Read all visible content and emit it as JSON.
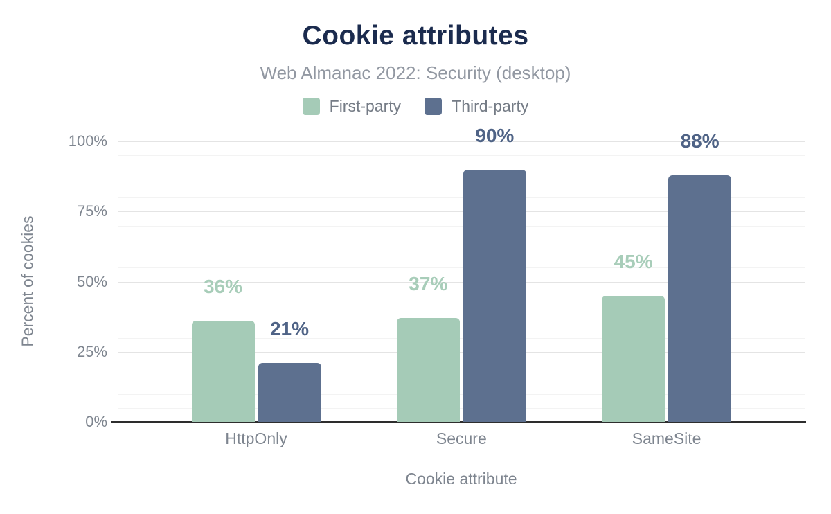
{
  "title": "Cookie attributes",
  "subtitle": "Web Almanac 2022: Security (desktop)",
  "chart_data": {
    "type": "bar",
    "title": "Cookie attributes",
    "subtitle": "Web Almanac 2022: Security (desktop)",
    "categories": [
      "HttpOnly",
      "Secure",
      "SameSite"
    ],
    "series": [
      {
        "name": "First-party",
        "values": [
          36,
          37,
          45
        ],
        "color": "#a5cbb7",
        "label_color": "#a8cdb9"
      },
      {
        "name": "Third-party",
        "values": [
          21,
          90,
          88
        ],
        "color": "#5d708f",
        "label_color": "#4f6386"
      }
    ],
    "value_suffix": "%",
    "data_labels": true,
    "xlabel": "Cookie attribute",
    "ylabel": "Percent of cookies",
    "ylim": [
      0,
      100
    ],
    "y_ticks": [
      {
        "value": 0,
        "label": "0%"
      },
      {
        "value": 25,
        "label": "25%"
      },
      {
        "value": 50,
        "label": "50%"
      },
      {
        "value": 75,
        "label": "75%"
      },
      {
        "value": 100,
        "label": "100%"
      }
    ],
    "grid": {
      "minor_step": 5,
      "major_step": 25,
      "minor_color": "#f3f3f3",
      "major_color": "#e4e4e4"
    },
    "legend_position": "top"
  },
  "colors": {
    "title": "#1b2b4e",
    "subtitle": "#9298a2",
    "legend_text": "#757c86",
    "axis_text": "#7e858f",
    "axis_line": "#2d2d2d",
    "background": "#ffffff"
  }
}
